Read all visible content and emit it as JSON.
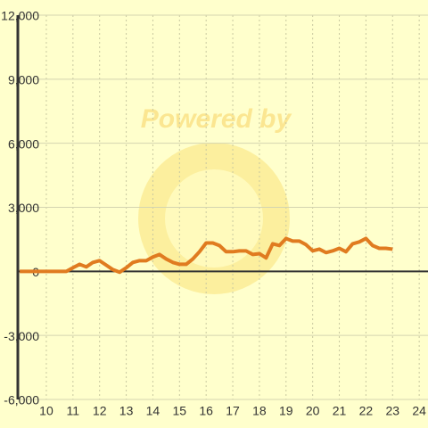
{
  "chart_data": {
    "type": "line",
    "watermark": "Powered by",
    "x": [
      9,
      10.75,
      11,
      11.25,
      11.5,
      11.75,
      12,
      12.25,
      12.5,
      12.75,
      13,
      13.25,
      13.5,
      13.75,
      14,
      14.25,
      14.5,
      14.75,
      15,
      15.25,
      15.5,
      15.75,
      16,
      16.25,
      16.5,
      16.75,
      17,
      17.25,
      17.5,
      17.75,
      18,
      18.25,
      18.5,
      18.75,
      19,
      19.25,
      19.5,
      19.75,
      20,
      20.25,
      20.5,
      20.75,
      21,
      21.25,
      21.5,
      21.75,
      22,
      22.25,
      22.5,
      22.75,
      23
    ],
    "series": [
      {
        "color": "#e07b20",
        "values": [
          0,
          0,
          170,
          330,
          210,
          420,
          500,
          290,
          80,
          -40,
          170,
          420,
          500,
          500,
          670,
          790,
          580,
          420,
          330,
          330,
          580,
          920,
          1330,
          1330,
          1210,
          920,
          920,
          960,
          960,
          790,
          830,
          630,
          1290,
          1210,
          1540,
          1420,
          1420,
          1250,
          960,
          1040,
          880,
          960,
          1080,
          920,
          1290,
          1380,
          1540,
          1210,
          1080,
          1080,
          1040
        ]
      }
    ],
    "xlim": [
      8.93,
      24.33
    ],
    "xticks": [
      10,
      11,
      12,
      13,
      14,
      15,
      16,
      17,
      18,
      19,
      20,
      21,
      22,
      23,
      24
    ],
    "ylim": [
      -6000,
      12000
    ],
    "yticks": [
      {
        "value": -6000,
        "label": "-6,000"
      },
      {
        "value": -3000,
        "label": "-3,000"
      },
      0,
      {
        "value": 3000,
        "label": "3,000"
      },
      {
        "value": 6000,
        "label": "6,000"
      },
      {
        "value": 9000,
        "label": "9,000"
      },
      {
        "value": 12000,
        "label": "12,000"
      }
    ],
    "grid": true
  }
}
